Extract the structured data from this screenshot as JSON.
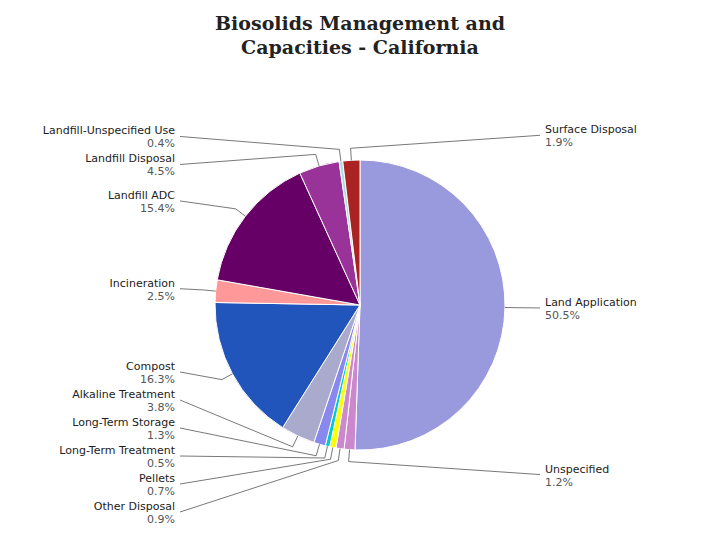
{
  "chart_data": {
    "type": "pie",
    "title": "Biosolids Management and\nCapacities - California",
    "categories": [
      "Land Application",
      "Unspecified",
      "Other Disposal",
      "Pellets",
      "Long-Term Treatment",
      "Long-Term Storage",
      "Alkaline Treatment",
      "Compost",
      "Incineration",
      "Landfill ADC",
      "Landfill Disposal",
      "Landfill-Unspecified Use",
      "Surface Disposal"
    ],
    "values": [
      50.5,
      1.2,
      0.9,
      0.7,
      0.5,
      1.3,
      3.8,
      16.3,
      2.5,
      15.4,
      4.5,
      0.4,
      1.9
    ],
    "value_labels": [
      "50.5%",
      "1.2%",
      "0.9%",
      "0.7%",
      "0.5%",
      "1.3%",
      "3.8%",
      "16.3%",
      "2.5%",
      "15.4%",
      "4.5%",
      "0.4%",
      "1.9%"
    ],
    "colors": [
      "#9999DD",
      "#CC88CC",
      "#CC88CC",
      "#FFFF00",
      "#00CCCC",
      "#8888EE",
      "#AAAACC",
      "#2255BB",
      "#FF9999",
      "#660066",
      "#993399",
      "#AADDDD",
      "#AA2222"
    ],
    "data_labels": true
  }
}
